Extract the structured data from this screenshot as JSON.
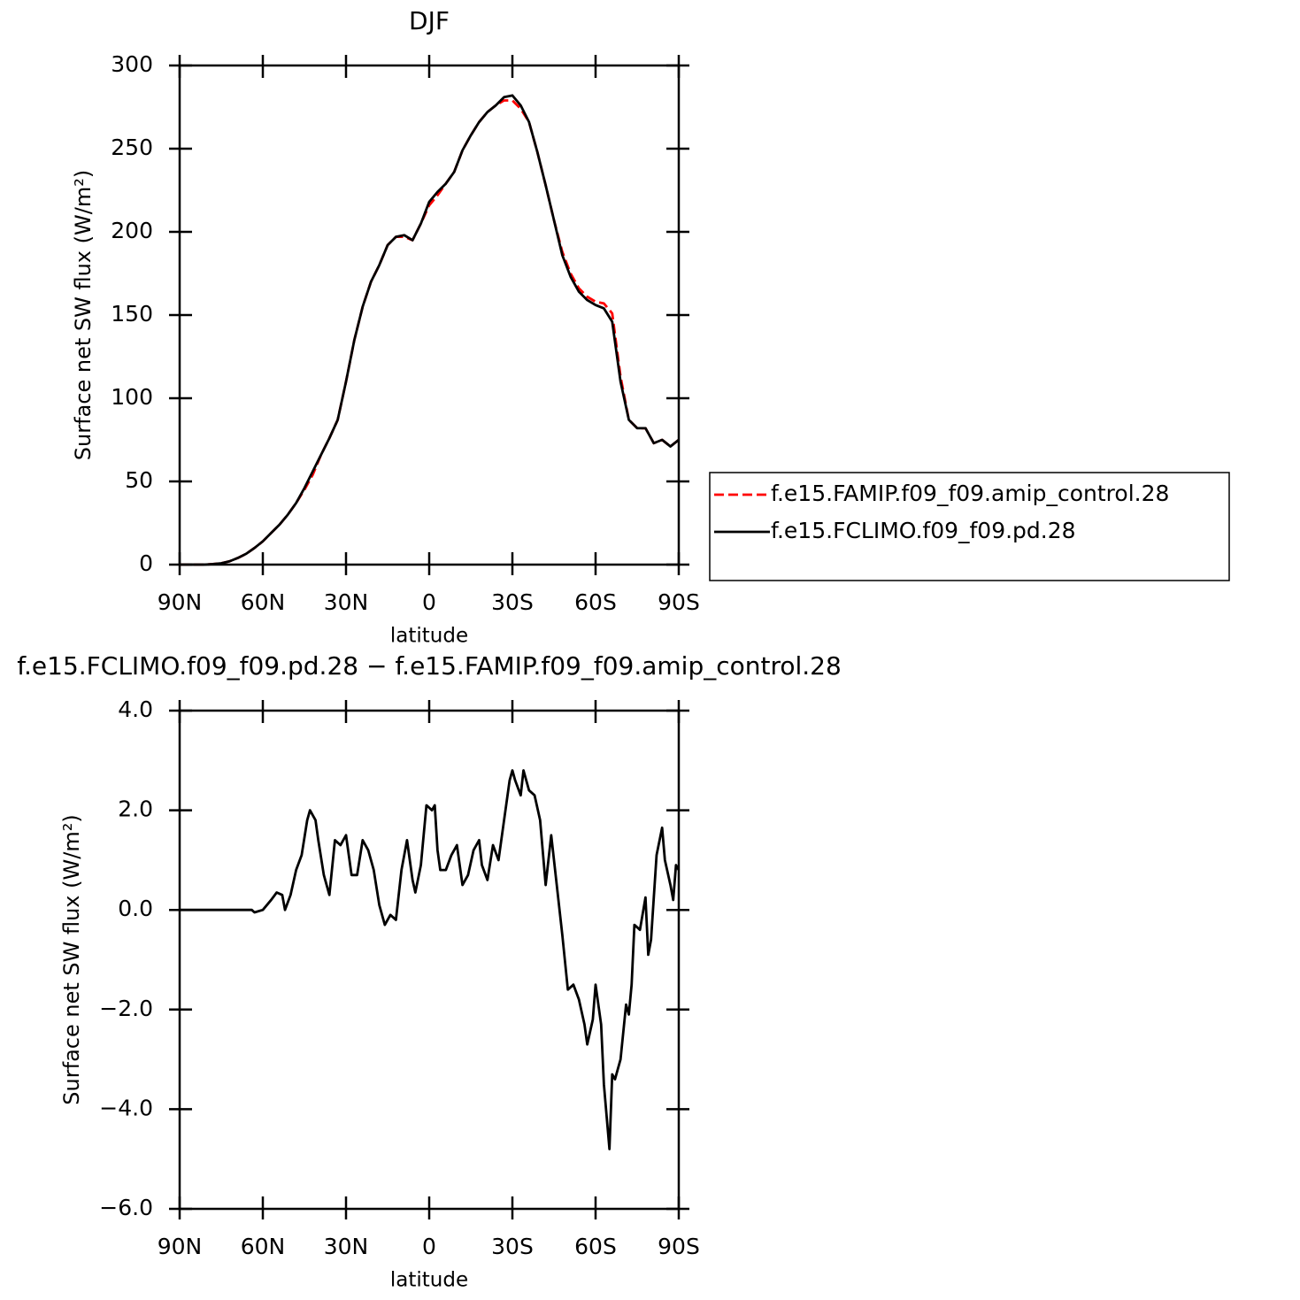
{
  "chart_data": [
    {
      "type": "line",
      "title": "DJF",
      "xlabel": "latitude",
      "ylabel": "Surface net SW flux (W/m²)",
      "x": [
        90,
        87,
        84,
        81,
        78,
        75,
        72,
        69,
        66,
        63,
        60,
        57,
        54,
        51,
        48,
        45,
        42,
        39,
        36,
        33,
        30,
        27,
        24,
        21,
        18,
        15,
        12,
        9,
        6,
        3,
        0,
        -3,
        -6,
        -9,
        -12,
        -15,
        -18,
        -21,
        -24,
        -27,
        -30,
        -33,
        -36,
        -39,
        -42,
        -45,
        -48,
        -51,
        -54,
        -57,
        -60,
        -63,
        -66,
        -69,
        -72,
        -75,
        -78,
        -81,
        -84,
        -87,
        -90
      ],
      "series": [
        {
          "name": "f.e15.FAMIP.f09_f09.amip_control.28",
          "color": "#ff0000",
          "dashed": true,
          "values": [
            0,
            0,
            0,
            0,
            0.3,
            0.8,
            2,
            4,
            6.5,
            10,
            14,
            19,
            24,
            30,
            37,
            45,
            54,
            66,
            76,
            87,
            110,
            135,
            155,
            170,
            180,
            192,
            197,
            197,
            195,
            205,
            216,
            222,
            229,
            236,
            249,
            258,
            266,
            272,
            276,
            279,
            279,
            274,
            266,
            248,
            228,
            207,
            188,
            175,
            166,
            161,
            158,
            157,
            151,
            113,
            87,
            82,
            82,
            73,
            75,
            71,
            75
          ]
        },
        {
          "name": "f.e15.FCLIMO.f09_f09.pd.28",
          "color": "#000000",
          "dashed": false,
          "values": [
            0,
            0,
            0,
            0,
            0.3,
            0.8,
            2,
            4,
            6.5,
            10,
            14,
            19,
            24,
            30,
            37,
            46,
            56,
            66,
            76,
            87,
            110,
            135,
            155,
            170,
            180,
            192,
            197,
            198,
            195,
            205,
            218,
            224,
            229,
            236,
            249,
            258,
            266,
            272,
            276,
            281,
            282,
            276,
            266,
            248,
            228,
            207,
            186,
            173,
            164,
            159,
            156,
            154,
            146,
            110,
            87,
            82,
            82,
            73,
            75,
            71,
            75
          ]
        }
      ],
      "xlim": [
        90,
        -90
      ],
      "xticks": [
        {
          "value": 90,
          "label": "90N"
        },
        {
          "value": 60,
          "label": "60N"
        },
        {
          "value": 30,
          "label": "30N"
        },
        0,
        {
          "value": -30,
          "label": "30S"
        },
        {
          "value": -60,
          "label": "60S"
        },
        {
          "value": -90,
          "label": "90S"
        }
      ],
      "ylim": [
        0,
        300
      ],
      "yticks": [
        0,
        50,
        100,
        150,
        200,
        250,
        300
      ],
      "legend": "right"
    },
    {
      "type": "line",
      "title": "f.e15.FCLIMO.f09_f09.pd.28 − f.e15.FAMIP.f09_f09.amip_control.28",
      "xlabel": "latitude",
      "ylabel": "Surface net SW flux (W/m²)",
      "x": [
        90,
        64,
        63,
        60,
        57,
        55,
        53,
        52,
        50,
        48,
        46,
        44,
        43,
        41,
        40,
        38,
        36,
        34,
        32,
        30,
        28,
        26,
        24,
        22,
        20,
        18,
        16,
        14,
        12,
        10,
        8,
        6,
        5,
        3,
        1,
        -1,
        -2,
        -3,
        -4,
        -6,
        -8,
        -10,
        -12,
        -14,
        -16,
        -18,
        -19,
        -21,
        -23,
        -25,
        -27,
        -29,
        -30,
        -31,
        -33,
        -34,
        -36,
        -38,
        -40,
        -42,
        -44,
        -46,
        -48,
        -50,
        -52,
        -54,
        -56,
        -57,
        -59,
        -60,
        -62,
        -63,
        -65,
        -66,
        -67,
        -69,
        -71,
        -72,
        -73,
        -74,
        -76,
        -78,
        -79,
        -80,
        -82,
        -84,
        -85,
        -87,
        -88,
        -89,
        -90
      ],
      "values": [
        0,
        0,
        -0.05,
        0,
        0.2,
        0.35,
        0.3,
        0,
        0.3,
        0.8,
        1.1,
        1.8,
        2,
        1.8,
        1.4,
        0.7,
        0.3,
        1.4,
        1.3,
        1.5,
        0.7,
        0.7,
        1.4,
        1.2,
        0.8,
        0.1,
        -0.3,
        -0.1,
        -0.2,
        0.8,
        1.4,
        0.6,
        0.35,
        0.9,
        2.1,
        2,
        2.1,
        1.2,
        0.8,
        0.8,
        1.1,
        1.3,
        0.5,
        0.7,
        1.2,
        1.4,
        0.9,
        0.6,
        1.3,
        1,
        1.8,
        2.6,
        2.8,
        2.6,
        2.3,
        2.8,
        2.4,
        2.3,
        1.8,
        0.5,
        1.5,
        0.5,
        -0.5,
        -1.6,
        -1.5,
        -1.8,
        -2.3,
        -2.7,
        -2.2,
        -1.5,
        -2.3,
        -3.5,
        -4.8,
        -3.3,
        -3.4,
        -3,
        -1.9,
        -2.1,
        -1.5,
        -0.3,
        -0.4,
        0.25,
        -0.9,
        -0.6,
        1.1,
        1.65,
        1,
        0.5,
        0.2,
        0.9,
        0.8
      ],
      "color": "#000000",
      "xlim": [
        90,
        -90
      ],
      "xticks": [
        {
          "value": 90,
          "label": "90N"
        },
        {
          "value": 60,
          "label": "60N"
        },
        {
          "value": 30,
          "label": "30N"
        },
        0,
        {
          "value": -30,
          "label": "30S"
        },
        {
          "value": -60,
          "label": "60S"
        },
        {
          "value": -90,
          "label": "90S"
        }
      ],
      "ylim": [
        -6,
        4
      ],
      "yticks": [
        {
          "value": 4,
          "label": "4.0"
        },
        {
          "value": 2,
          "label": "2.0"
        },
        {
          "value": 0,
          "label": "0.0"
        },
        {
          "value": -2,
          "label": "−2.0"
        },
        {
          "value": -4,
          "label": "−4.0"
        },
        {
          "value": -6,
          "label": "−6.0"
        }
      ]
    }
  ]
}
